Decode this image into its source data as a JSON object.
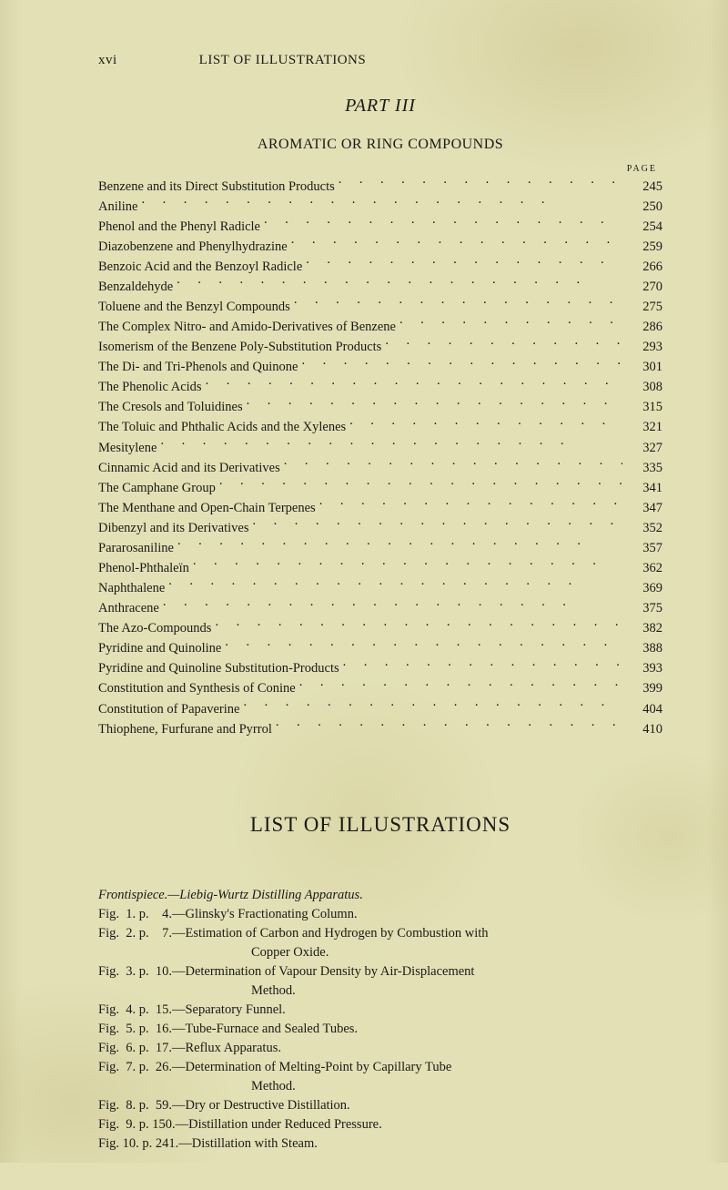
{
  "running_head": {
    "page_roman": "xvi",
    "title": "LIST OF ILLUSTRATIONS"
  },
  "part": {
    "label": "PART III",
    "section": "AROMATIC OR RING COMPOUNDS",
    "page_label": "PAGE"
  },
  "toc": [
    {
      "entry": "Benzene and its Direct Substitution Products",
      "page": "245"
    },
    {
      "entry": "Aniline",
      "page": "250"
    },
    {
      "entry": "Phenol and the Phenyl Radicle",
      "page": "254"
    },
    {
      "entry": "Diazobenzene and Phenylhydrazine",
      "page": "259"
    },
    {
      "entry": "Benzoic Acid and the Benzoyl Radicle",
      "page": "266"
    },
    {
      "entry": "Benzaldehyde",
      "page": "270"
    },
    {
      "entry": "Toluene and the Benzyl Compounds",
      "page": "275"
    },
    {
      "entry": "The Complex Nitro- and Amido-Derivatives of Benzene",
      "page": "286"
    },
    {
      "entry": "Isomerism of the Benzene Poly-Substitution Products",
      "page": "293"
    },
    {
      "entry": "The Di- and Tri-Phenols and Quinone",
      "page": "301"
    },
    {
      "entry": "The Phenolic Acids",
      "page": "308"
    },
    {
      "entry": "The Cresols and Toluidines",
      "page": "315"
    },
    {
      "entry": "The Toluic and Phthalic Acids and the Xylenes",
      "page": "321"
    },
    {
      "entry": "Mesitylene",
      "page": "327"
    },
    {
      "entry": "Cinnamic Acid and its Derivatives",
      "page": "335"
    },
    {
      "entry": "The Camphane Group",
      "page": "341"
    },
    {
      "entry": "The Menthane and Open-Chain Terpenes",
      "page": "347"
    },
    {
      "entry": "Dibenzyl and its Derivatives",
      "page": "352"
    },
    {
      "entry": "Pararosaniline",
      "page": "357"
    },
    {
      "entry": "Phenol-Phthaleïn",
      "page": "362"
    },
    {
      "entry": "Naphthalene",
      "page": "369"
    },
    {
      "entry": "Anthracene",
      "page": "375"
    },
    {
      "entry": "The Azo-Compounds",
      "page": "382"
    },
    {
      "entry": "Pyridine and Quinoline",
      "page": "388"
    },
    {
      "entry": "Pyridine and Quinoline Substitution-Products",
      "page": "393"
    },
    {
      "entry": "Constitution and Synthesis of Conine",
      "page": "399"
    },
    {
      "entry": "Constitution of Papaverine",
      "page": "404"
    },
    {
      "entry": "Thiophene, Furfurane and Pyrrol",
      "page": "410"
    }
  ],
  "illus_title": "LIST OF ILLUSTRATIONS",
  "illus": {
    "frontispiece": "Frontispiece.—Liebig-Wurtz Distilling Apparatus.",
    "items": [
      {
        "ref": "Fig.  1. p.    4.",
        "desc": "—Glinsky's Fractionating Column."
      },
      {
        "ref": "Fig.  2. p.    7.",
        "desc": "—Estimation of Carbon and Hydrogen by Combustion with",
        "cont": "Copper Oxide."
      },
      {
        "ref": "Fig.  3. p.  10.",
        "desc": "—Determination of Vapour Density by Air-Displacement",
        "cont": "Method."
      },
      {
        "ref": "Fig.  4. p.  15.",
        "desc": "—Separatory Funnel."
      },
      {
        "ref": "Fig.  5. p.  16.",
        "desc": "—Tube-Furnace and Sealed Tubes."
      },
      {
        "ref": "Fig.  6. p.  17.",
        "desc": "—Reflux Apparatus."
      },
      {
        "ref": "Fig.  7. p.  26.",
        "desc": "—Determination of Melting-Point by Capillary Tube",
        "cont": "Method."
      },
      {
        "ref": "Fig.  8. p.  59.",
        "desc": "—Dry or Destructive Distillation."
      },
      {
        "ref": "Fig.  9. p. 150.",
        "desc": "—Distillation under Reduced Pressure."
      },
      {
        "ref": "Fig. 10. p. 241.",
        "desc": "—Distillation with Steam."
      }
    ]
  },
  "style": {
    "background_color": "#e3e0b6",
    "text_color": "#1a1a16",
    "body_fontsize_pt": 11,
    "title_fontsize_pt": 17,
    "font_family": "Century Schoolbook / Bookman serif"
  }
}
